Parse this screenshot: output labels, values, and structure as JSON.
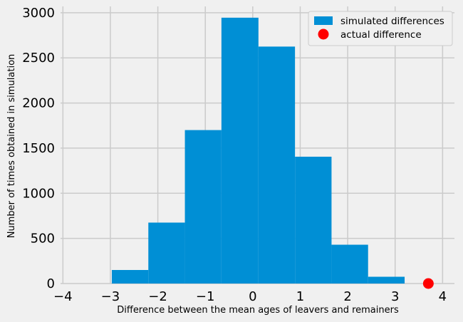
{
  "chart_data": {
    "type": "histogram",
    "xlabel": "Difference between the mean ages of leavers and remainers",
    "ylabel": "Number of times obtained in simulation",
    "xlim": [
      -4.05,
      4.25
    ],
    "ylim": [
      0,
      3070
    ],
    "x_ticks": [
      -4,
      -3,
      -2,
      -1,
      0,
      1,
      2,
      3,
      4
    ],
    "x_tick_labels": [
      "−4",
      "−3",
      "−2",
      "−1",
      "0",
      "1",
      "2",
      "3",
      "4"
    ],
    "y_ticks": [
      0,
      500,
      1000,
      1500,
      2000,
      2500,
      3000
    ],
    "y_tick_labels": [
      "0",
      "500",
      "1000",
      "1500",
      "2000",
      "2500",
      "3000"
    ],
    "grid": true,
    "legend_position": "top-right",
    "series": [
      {
        "name": "simulated differences",
        "kind": "bars",
        "color": "#008fd5",
        "bins": [
          {
            "x0": -2.97,
            "x1": -2.2,
            "count": 150
          },
          {
            "x0": -2.2,
            "x1": -1.43,
            "count": 675
          },
          {
            "x0": -1.43,
            "x1": -0.66,
            "count": 1700
          },
          {
            "x0": -0.66,
            "x1": 0.12,
            "count": 2945
          },
          {
            "x0": 0.12,
            "x1": 0.89,
            "count": 2625
          },
          {
            "x0": 0.89,
            "x1": 1.66,
            "count": 1405
          },
          {
            "x0": 1.66,
            "x1": 2.43,
            "count": 430
          },
          {
            "x0": 2.43,
            "x1": 3.2,
            "count": 75
          }
        ]
      },
      {
        "name": "actual difference",
        "kind": "point",
        "color": "#ff0000",
        "x": 3.7,
        "y": 0
      }
    ]
  }
}
